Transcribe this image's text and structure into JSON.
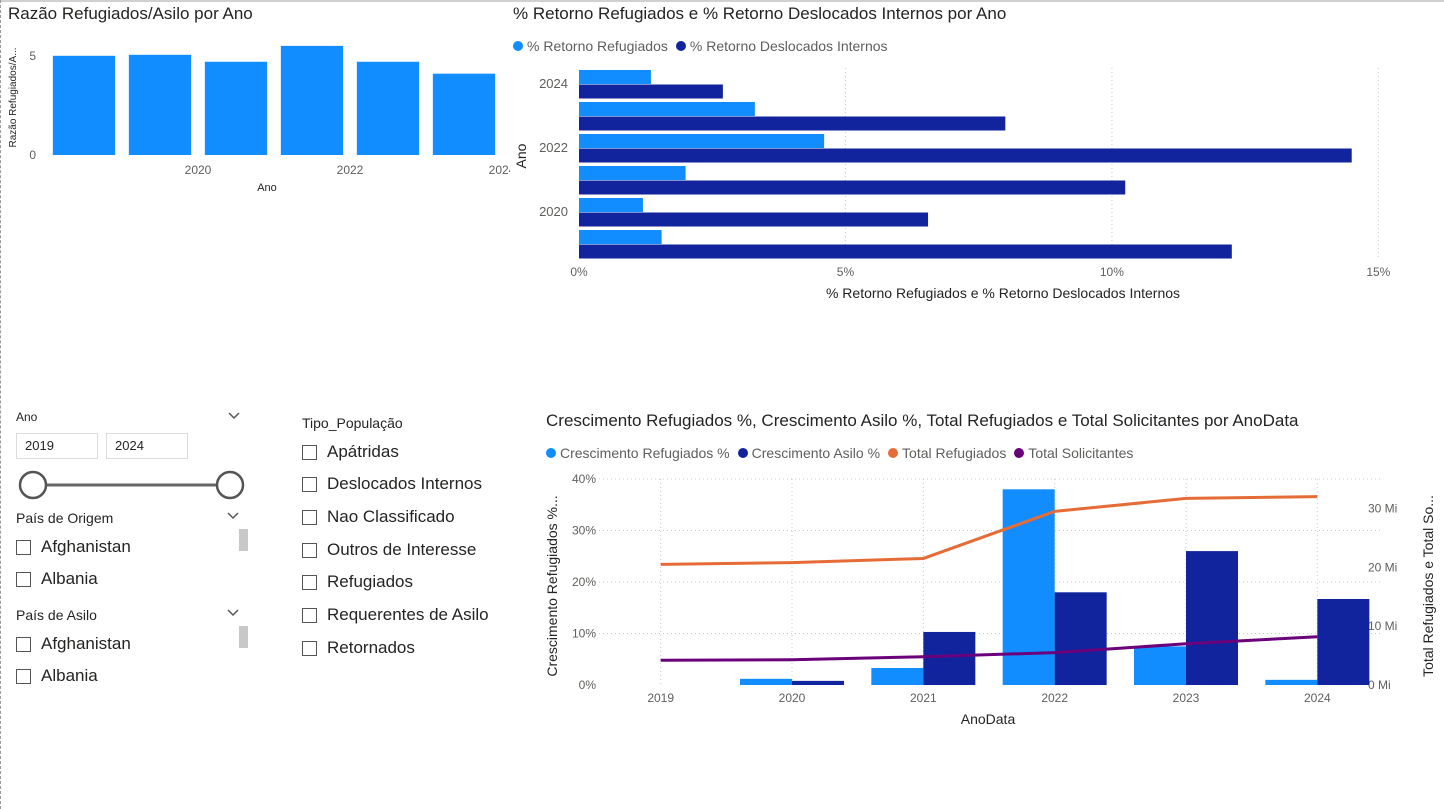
{
  "colors": {
    "light_blue": "#118DFF",
    "dark_blue": "#12239E",
    "orange": "#E66C37",
    "purple": "#6B007B",
    "grid": "#e1e1e1",
    "axis_text": "#605e5c"
  },
  "chart1": {
    "title": "Razão Refugiados/Asilo por Ano",
    "chart_data": {
      "type": "bar",
      "categories": [
        2019,
        2020,
        2021,
        2022,
        2023,
        2024
      ],
      "values": [
        5.0,
        5.05,
        4.7,
        5.5,
        4.7,
        4.1
      ],
      "ylim": [
        0,
        6.2
      ],
      "yticks": [
        "0",
        "5"
      ],
      "xtick_labels": [
        "2020",
        "2022",
        "2024"
      ],
      "xlabel": "Ano",
      "ylabel": "Razão Refugiados/A..."
    }
  },
  "chart2": {
    "title": "% Retorno Refugiados e % Retorno Deslocados Internos por Ano",
    "legend": [
      "% Retorno Refugiados",
      "% Retorno Deslocados Internos"
    ],
    "chart_data": {
      "type": "bar",
      "orientation": "horizontal",
      "categories": [
        2024,
        2023,
        2022,
        2021,
        2020,
        2019
      ],
      "series": [
        {
          "name": "% Retorno Refugiados",
          "values": [
            1.35,
            3.3,
            4.6,
            2.0,
            1.2,
            1.55
          ]
        },
        {
          "name": "% Retorno Deslocados Internos",
          "values": [
            2.7,
            8.0,
            14.5,
            10.25,
            6.55,
            12.25
          ]
        }
      ],
      "xlim": [
        0,
        15.5
      ],
      "xticks": [
        "0%",
        "5%",
        "10%",
        "15%"
      ],
      "ytick_labels": [
        "2024",
        "2022",
        "2020"
      ],
      "xlabel": "% Retorno Refugiados e % Retorno Deslocados Internos",
      "ylabel": "Ano"
    }
  },
  "chart3": {
    "title": "Crescimento Refugiados %, Crescimento Asilo %, Total Refugiados e Total Solicitantes por AnoData",
    "legend": [
      "Crescimento Refugiados %",
      "Crescimento Asilo %",
      "Total Refugiados",
      "Total Solicitantes"
    ],
    "chart_data": {
      "type": "bar",
      "combo": "bar+line",
      "categories": [
        "2019",
        "2020",
        "2021",
        "2022",
        "2023",
        "2024"
      ],
      "bar_series": [
        {
          "name": "Crescimento Refugiados %",
          "values": [
            0,
            1.2,
            3.3,
            38.0,
            7.5,
            1.0
          ]
        },
        {
          "name": "Crescimento Asilo %",
          "values": [
            0,
            0.8,
            10.3,
            18.0,
            26.0,
            16.7
          ]
        }
      ],
      "line_series": [
        {
          "name": "Total Refugiados",
          "values_mi": [
            20.5,
            20.8,
            21.5,
            29.5,
            31.7,
            32.0
          ]
        },
        {
          "name": "Total Solicitantes",
          "values_mi": [
            4.2,
            4.3,
            4.8,
            5.5,
            7.0,
            8.2
          ]
        }
      ],
      "ylim_left": [
        0,
        40
      ],
      "yticks_left": [
        "0%",
        "10%",
        "20%",
        "30%",
        "40%"
      ],
      "ylim_right": [
        0,
        35
      ],
      "yticks_right": [
        "0 Mi",
        "10 Mi",
        "20 Mi",
        "30 Mi"
      ],
      "xlabel": "AnoData",
      "ylabel_left": "Crescimento Refugiados %...",
      "ylabel_right": "Total Refugiados e Total So..."
    }
  },
  "slicer_ano": {
    "title": "Ano",
    "from": "2019",
    "to": "2024",
    "range": [
      2019,
      2024
    ],
    "position": [
      0,
      1
    ]
  },
  "slicer_origem": {
    "title": "País de Origem",
    "items": [
      "Afghanistan",
      "Albania"
    ]
  },
  "slicer_asilo": {
    "title": "País de Asilo",
    "items": [
      "Afghanistan",
      "Albania"
    ]
  },
  "slicer_tipo": {
    "title": "Tipo_População",
    "items": [
      "Apátridas",
      "Deslocados Internos",
      "Nao Classificado",
      "Outros de Interesse",
      "Refugiados",
      "Requerentes de Asilo",
      "Retornados"
    ]
  }
}
